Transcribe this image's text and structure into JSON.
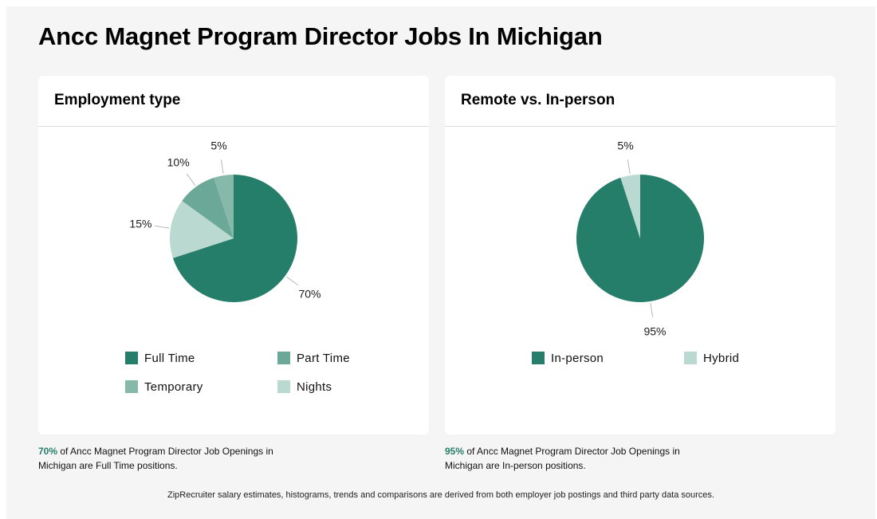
{
  "page": {
    "title": "Ancc Magnet Program Director Jobs In Michigan",
    "footer": "ZipRecruiter salary estimates, histograms, trends and comparisons are derived from both employer job postings and third party data sources."
  },
  "employment": {
    "title": "Employment type",
    "summary_highlight": "70%",
    "summary_text": " of Ancc Magnet Program Director Job Openings in Michigan are Full Time positions."
  },
  "remote": {
    "title": "Remote vs. In-person",
    "summary_highlight": "95%",
    "summary_text": " of Ancc Magnet Program Director Job Openings in Michigan are In-person positions."
  },
  "chart_data": [
    {
      "type": "pie",
      "title": "Employment type",
      "legend_position": "bottom",
      "slices": [
        {
          "name": "Full Time",
          "value": 70,
          "label": "70%",
          "color": "#257e69"
        },
        {
          "name": "Nights",
          "value": 15,
          "label": "15%",
          "color": "#bad9d0"
        },
        {
          "name": "Part Time",
          "value": 10,
          "label": "10%",
          "color": "#6ba897"
        },
        {
          "name": "Temporary",
          "value": 5,
          "label": "5%",
          "color": "#86b9aa"
        }
      ],
      "legend": [
        {
          "name": "Full Time",
          "color": "#257e69"
        },
        {
          "name": "Part Time",
          "color": "#6ba897"
        },
        {
          "name": "Temporary",
          "color": "#86b9aa"
        },
        {
          "name": "Nights",
          "color": "#bad9d0"
        }
      ]
    },
    {
      "type": "pie",
      "title": "Remote vs. In-person",
      "legend_position": "bottom",
      "slices": [
        {
          "name": "In-person",
          "value": 95,
          "label": "95%",
          "color": "#257e69"
        },
        {
          "name": "Hybrid",
          "value": 5,
          "label": "5%",
          "color": "#bad9d0"
        }
      ],
      "legend": [
        {
          "name": "In-person",
          "color": "#257e69"
        },
        {
          "name": "Hybrid",
          "color": "#bad9d0"
        }
      ]
    }
  ]
}
